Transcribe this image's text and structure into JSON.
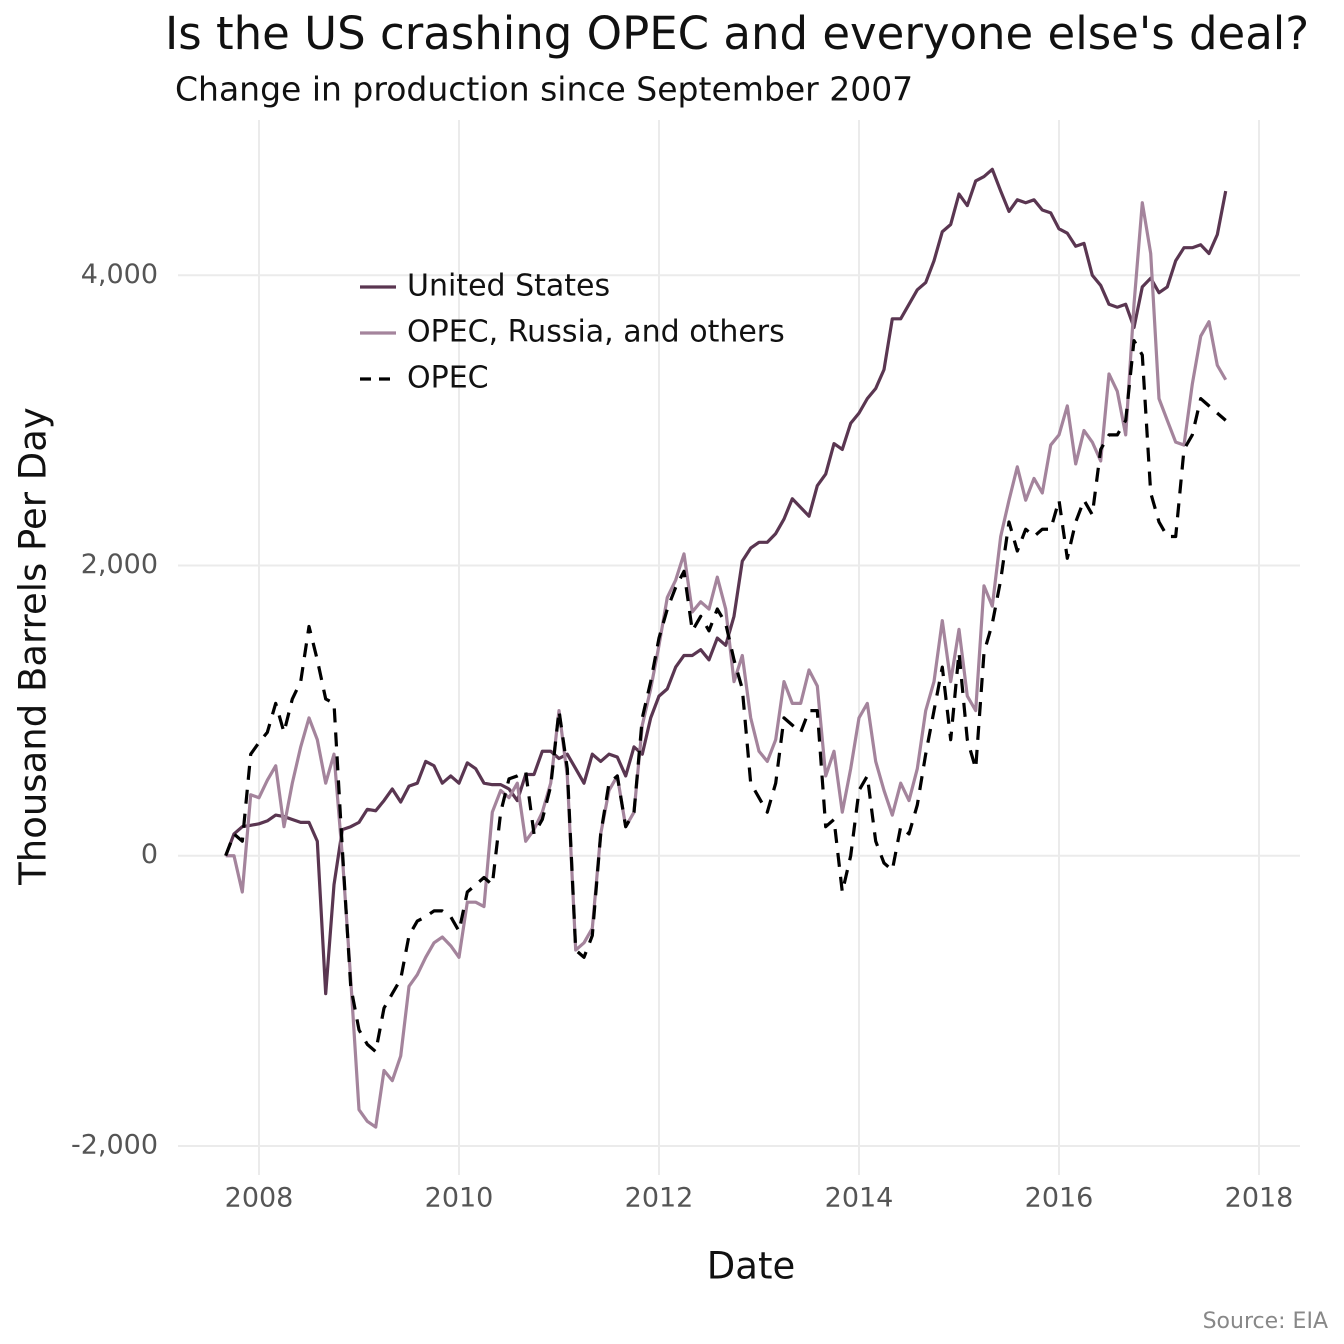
{
  "chart_data": {
    "type": "line",
    "title": "Is the US crashing OPEC and everyone else's deal?",
    "subtitle": "Change in production since September 2007",
    "x_label": "Date",
    "y_label": "Thousand Barrels Per Day",
    "caption": "Source: EIA",
    "legend_position": "top-left",
    "grid": true,
    "xlim": [
      2007.19,
      2018.41
    ],
    "ylim": [
      -2200,
      5070
    ],
    "xticks": [
      2008,
      2010,
      2012,
      2014,
      2016,
      2018
    ],
    "yticks": [
      {
        "value": -2000,
        "label": "-2,000"
      },
      0,
      {
        "value": 2000,
        "label": "2,000"
      },
      {
        "value": 4000,
        "label": "4,000"
      }
    ],
    "x": [
      2007.667,
      2007.75,
      2007.833,
      2007.917,
      2008,
      2008.083,
      2008.167,
      2008.25,
      2008.333,
      2008.417,
      2008.5,
      2008.583,
      2008.667,
      2008.75,
      2008.833,
      2008.917,
      2009,
      2009.083,
      2009.167,
      2009.25,
      2009.333,
      2009.417,
      2009.5,
      2009.583,
      2009.667,
      2009.75,
      2009.833,
      2009.917,
      2010,
      2010.083,
      2010.167,
      2010.25,
      2010.333,
      2010.417,
      2010.5,
      2010.583,
      2010.667,
      2010.75,
      2010.833,
      2010.917,
      2011,
      2011.083,
      2011.167,
      2011.25,
      2011.333,
      2011.417,
      2011.5,
      2011.583,
      2011.667,
      2011.75,
      2011.833,
      2011.917,
      2012,
      2012.083,
      2012.167,
      2012.25,
      2012.333,
      2012.417,
      2012.5,
      2012.583,
      2012.667,
      2012.75,
      2012.833,
      2012.917,
      2013,
      2013.083,
      2013.167,
      2013.25,
      2013.333,
      2013.417,
      2013.5,
      2013.583,
      2013.667,
      2013.75,
      2013.833,
      2013.917,
      2014,
      2014.083,
      2014.167,
      2014.25,
      2014.333,
      2014.417,
      2014.5,
      2014.583,
      2014.667,
      2014.75,
      2014.833,
      2014.917,
      2015,
      2015.083,
      2015.167,
      2015.25,
      2015.333,
      2015.417,
      2015.5,
      2015.583,
      2015.667,
      2015.75,
      2015.833,
      2015.917,
      2016,
      2016.083,
      2016.167,
      2016.25,
      2016.333,
      2016.417,
      2016.5,
      2016.583,
      2016.667,
      2016.75,
      2016.833,
      2016.917,
      2017,
      2017.083,
      2017.167,
      2017.25,
      2017.333,
      2017.417,
      2017.5,
      2017.583,
      2017.667
    ],
    "series": [
      {
        "name": "United States",
        "color": "#5a3651",
        "dash": "solid",
        "values": [
          0,
          150,
          200,
          210,
          220,
          240,
          280,
          270,
          250,
          230,
          230,
          100,
          -950,
          -200,
          180,
          200,
          230,
          320,
          310,
          380,
          460,
          370,
          480,
          500,
          650,
          620,
          500,
          550,
          500,
          640,
          600,
          500,
          490,
          490,
          460,
          380,
          560,
          560,
          720,
          720,
          670,
          700,
          600,
          500,
          700,
          650,
          700,
          680,
          550,
          750,
          700,
          950,
          1100,
          1150,
          1300,
          1380,
          1380,
          1420,
          1350,
          1500,
          1450,
          1650,
          2030,
          2120,
          2160,
          2160,
          2220,
          2320,
          2460,
          2400,
          2340,
          2550,
          2630,
          2840,
          2800,
          2980,
          3050,
          3150,
          3220,
          3350,
          3700,
          3700,
          3800,
          3900,
          3950,
          4100,
          4300,
          4350,
          4560,
          4480,
          4650,
          4680,
          4730,
          4580,
          4440,
          4520,
          4500,
          4520,
          4450,
          4430,
          4320,
          4290,
          4200,
          4220,
          4000,
          3930,
          3800,
          3780,
          3800,
          3640,
          3920,
          3980,
          3880,
          3920,
          4100,
          4190,
          4190,
          4210,
          4150,
          4280,
          4580
        ]
      },
      {
        "name": "OPEC, Russia, and others",
        "color": "#a4849c",
        "dash": "solid",
        "values": [
          0,
          0,
          -250,
          420,
          400,
          520,
          620,
          200,
          500,
          750,
          950,
          800,
          500,
          700,
          0,
          -850,
          -1750,
          -1830,
          -1870,
          -1480,
          -1550,
          -1380,
          -900,
          -820,
          -700,
          -600,
          -560,
          -620,
          -700,
          -320,
          -320,
          -350,
          300,
          450,
          400,
          500,
          100,
          180,
          300,
          500,
          1000,
          550,
          -650,
          -600,
          -500,
          150,
          450,
          550,
          200,
          300,
          900,
          1150,
          1450,
          1780,
          1900,
          2080,
          1680,
          1750,
          1700,
          1920,
          1700,
          1200,
          1380,
          950,
          720,
          650,
          800,
          1200,
          1050,
          1050,
          1280,
          1170,
          550,
          720,
          300,
          600,
          950,
          1050,
          650,
          450,
          280,
          500,
          380,
          600,
          1000,
          1200,
          1620,
          1200,
          1560,
          1100,
          1000,
          1860,
          1720,
          2200,
          2450,
          2680,
          2450,
          2600,
          2500,
          2830,
          2900,
          3100,
          2700,
          2930,
          2850,
          2720,
          3320,
          3200,
          2900,
          3800,
          4500,
          4150,
          3150,
          3000,
          2850,
          2830,
          3250,
          3580,
          3680,
          3380,
          3280
        ]
      },
      {
        "name": "OPEC",
        "color": "#000000",
        "dash": "dashed",
        "values": [
          0,
          150,
          100,
          700,
          780,
          850,
          1050,
          850,
          1080,
          1200,
          1580,
          1350,
          1080,
          1050,
          50,
          -900,
          -1200,
          -1300,
          -1350,
          -1050,
          -950,
          -850,
          -550,
          -450,
          -420,
          -380,
          -380,
          -420,
          -520,
          -250,
          -200,
          -150,
          -200,
          300,
          530,
          550,
          580,
          150,
          250,
          480,
          1000,
          600,
          -650,
          -700,
          -550,
          150,
          500,
          550,
          200,
          300,
          950,
          1200,
          1500,
          1700,
          1850,
          1960,
          1550,
          1650,
          1550,
          1700,
          1600,
          1350,
          1150,
          500,
          400,
          300,
          500,
          950,
          900,
          850,
          1000,
          1000,
          200,
          250,
          -250,
          0,
          450,
          550,
          100,
          -50,
          -100,
          200,
          150,
          350,
          700,
          1000,
          1300,
          800,
          1400,
          800,
          600,
          1400,
          1600,
          1900,
          2300,
          2100,
          2250,
          2200,
          2250,
          2250,
          2450,
          2050,
          2300,
          2450,
          2350,
          2800,
          2900,
          2900,
          3000,
          3550,
          3450,
          2500,
          2300,
          2200,
          2200,
          2800,
          2900,
          3150,
          3100,
          3050,
          3000
        ]
      }
    ]
  }
}
